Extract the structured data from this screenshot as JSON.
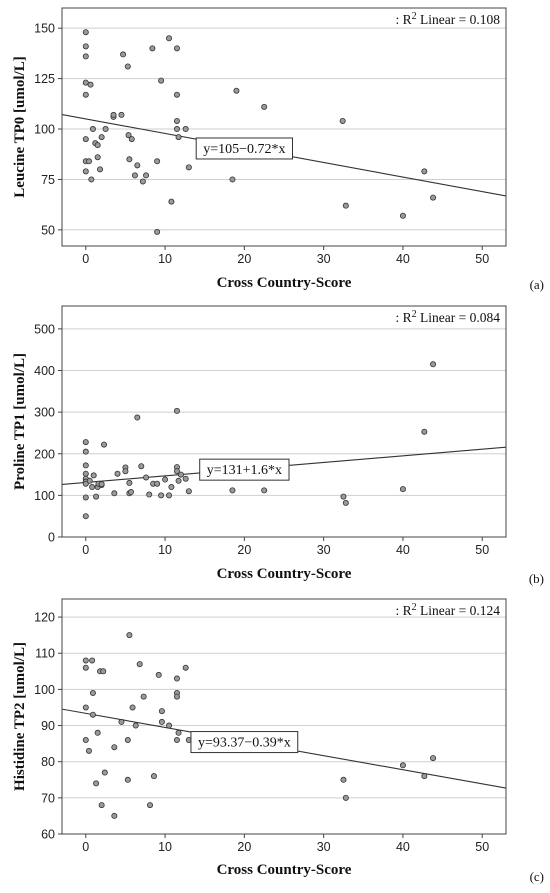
{
  "chart_data": [
    {
      "type": "scatter",
      "panel_label": "(a)",
      "xlabel": "Cross Country-Score",
      "ylabel": "Leucine TP0 [umol/L]",
      "xlim": [
        -3,
        53
      ],
      "ylim": [
        42,
        160
      ],
      "xticks": [
        0,
        10,
        20,
        30,
        40,
        50
      ],
      "yticks": [
        50,
        75,
        100,
        125,
        150
      ],
      "grid": "horizontal",
      "r2_prefix": ": R",
      "r2_sup": "2",
      "r2_suffix": " Linear = 0.108",
      "equation": "y=105−0.72*x",
      "fit": {
        "intercept": 105,
        "slope": -0.72
      },
      "points": [
        [
          0,
          148
        ],
        [
          0,
          141
        ],
        [
          0,
          136
        ],
        [
          0,
          123
        ],
        [
          0,
          117
        ],
        [
          0,
          95
        ],
        [
          0,
          84
        ],
        [
          0,
          79
        ],
        [
          0.4,
          84
        ],
        [
          0.6,
          122
        ],
        [
          0.7,
          75
        ],
        [
          0.9,
          100
        ],
        [
          1.2,
          93
        ],
        [
          1.5,
          92
        ],
        [
          1.5,
          86
        ],
        [
          1.8,
          80
        ],
        [
          2,
          96
        ],
        [
          2.5,
          100
        ],
        [
          3.5,
          106
        ],
        [
          3.5,
          107
        ],
        [
          4.5,
          107
        ],
        [
          4.7,
          137
        ],
        [
          5.3,
          131
        ],
        [
          5.4,
          97
        ],
        [
          5.5,
          85
        ],
        [
          5.8,
          95
        ],
        [
          6.2,
          77
        ],
        [
          6.5,
          82
        ],
        [
          7.2,
          74
        ],
        [
          7.6,
          77
        ],
        [
          8.4,
          140
        ],
        [
          9,
          84
        ],
        [
          9,
          49
        ],
        [
          9.5,
          124
        ],
        [
          10.5,
          145
        ],
        [
          10.8,
          64
        ],
        [
          11.5,
          140
        ],
        [
          11.5,
          117
        ],
        [
          11.5,
          104
        ],
        [
          11.5,
          100
        ],
        [
          11.7,
          96
        ],
        [
          12.6,
          100
        ],
        [
          13,
          81
        ],
        [
          18.5,
          75
        ],
        [
          19,
          119
        ],
        [
          22.5,
          111
        ],
        [
          32.4,
          104
        ],
        [
          32.8,
          62
        ],
        [
          40,
          57
        ],
        [
          42.7,
          79
        ],
        [
          43.8,
          66
        ]
      ]
    },
    {
      "type": "scatter",
      "panel_label": "(b)",
      "xlabel": "Cross Country-Score",
      "ylabel": "Proline TP1 [umol/L]",
      "xlim": [
        -3,
        53
      ],
      "ylim": [
        0,
        555
      ],
      "xticks": [
        0,
        10,
        20,
        30,
        40,
        50
      ],
      "yticks": [
        0,
        100,
        200,
        300,
        400,
        500
      ],
      "grid": "horizontal",
      "r2_prefix": ": R",
      "r2_sup": "2",
      "r2_suffix": " Linear = 0.084",
      "equation": "y=131+1.6*x",
      "fit": {
        "intercept": 131,
        "slope": 1.6
      },
      "points": [
        [
          0,
          228
        ],
        [
          0,
          205
        ],
        [
          0,
          172
        ],
        [
          0,
          152
        ],
        [
          0,
          140
        ],
        [
          0,
          133
        ],
        [
          0,
          128
        ],
        [
          0,
          95
        ],
        [
          0,
          50
        ],
        [
          0.5,
          135
        ],
        [
          0.8,
          120
        ],
        [
          1,
          148
        ],
        [
          1.3,
          97
        ],
        [
          1.5,
          120
        ],
        [
          1.6,
          128
        ],
        [
          2,
          125
        ],
        [
          2,
          127
        ],
        [
          2.3,
          222
        ],
        [
          3.6,
          105
        ],
        [
          4,
          152
        ],
        [
          5,
          167
        ],
        [
          5,
          158
        ],
        [
          5.5,
          130
        ],
        [
          5.5,
          105
        ],
        [
          5.7,
          108
        ],
        [
          6.5,
          287
        ],
        [
          7,
          170
        ],
        [
          7.6,
          143
        ],
        [
          8,
          102
        ],
        [
          8.5,
          128
        ],
        [
          9,
          128
        ],
        [
          9.5,
          100
        ],
        [
          10,
          138
        ],
        [
          10.5,
          100
        ],
        [
          10.8,
          120
        ],
        [
          11.5,
          303
        ],
        [
          11.5,
          168
        ],
        [
          11.5,
          158
        ],
        [
          11.7,
          135
        ],
        [
          12,
          150
        ],
        [
          12.6,
          140
        ],
        [
          13,
          110
        ],
        [
          18.5,
          112
        ],
        [
          22.5,
          112
        ],
        [
          32.5,
          97
        ],
        [
          32.8,
          82
        ],
        [
          40,
          115
        ],
        [
          42.7,
          253
        ],
        [
          43.8,
          415
        ]
      ]
    },
    {
      "type": "scatter",
      "panel_label": "(c)",
      "xlabel": "Cross Country-Score",
      "ylabel": "Histidine TP2 [umol/L]",
      "xlim": [
        -3,
        53
      ],
      "ylim": [
        60,
        125
      ],
      "xticks": [
        0,
        10,
        20,
        30,
        40,
        50
      ],
      "yticks": [
        60,
        70,
        80,
        90,
        100,
        110,
        120
      ],
      "grid": "horizontal",
      "r2_prefix": ": R",
      "r2_sup": "2",
      "r2_suffix": " Linear = 0.124",
      "equation": "y=93.37−0.39*x",
      "fit": {
        "intercept": 93.37,
        "slope": -0.39
      },
      "points": [
        [
          0,
          108
        ],
        [
          0,
          106
        ],
        [
          0,
          95
        ],
        [
          0,
          86
        ],
        [
          0.4,
          83
        ],
        [
          0.8,
          108
        ],
        [
          0.9,
          99
        ],
        [
          0.9,
          93
        ],
        [
          1.3,
          74
        ],
        [
          1.5,
          88
        ],
        [
          1.8,
          105
        ],
        [
          2,
          68
        ],
        [
          2.2,
          105
        ],
        [
          2.4,
          77
        ],
        [
          3.6,
          84
        ],
        [
          3.6,
          65
        ],
        [
          4.5,
          91
        ],
        [
          5.3,
          86
        ],
        [
          5.3,
          75
        ],
        [
          5.5,
          115
        ],
        [
          5.9,
          95
        ],
        [
          6.3,
          90
        ],
        [
          6.8,
          107
        ],
        [
          7.3,
          98
        ],
        [
          8.1,
          68
        ],
        [
          8.6,
          76
        ],
        [
          9.2,
          104
        ],
        [
          9.6,
          94
        ],
        [
          9.6,
          91
        ],
        [
          10.5,
          90
        ],
        [
          11.5,
          103
        ],
        [
          11.5,
          99
        ],
        [
          11.5,
          98
        ],
        [
          11.5,
          86
        ],
        [
          11.7,
          88
        ],
        [
          12.6,
          106
        ],
        [
          13,
          86
        ],
        [
          18.5,
          86
        ],
        [
          19,
          86
        ],
        [
          32.5,
          75
        ],
        [
          32.8,
          70
        ],
        [
          40,
          79
        ],
        [
          42.7,
          76
        ],
        [
          43.8,
          81
        ]
      ]
    }
  ]
}
